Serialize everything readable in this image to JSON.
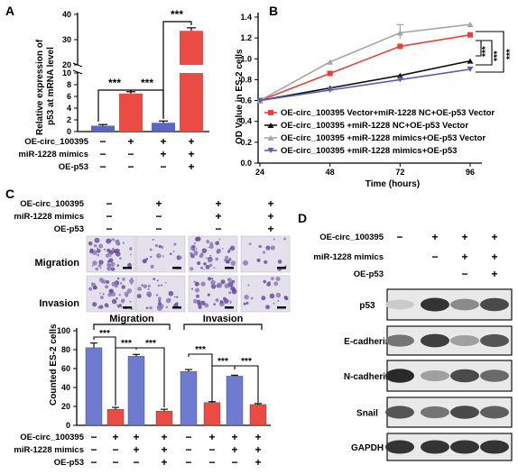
{
  "panels": {
    "a": "A",
    "b": "B",
    "c": "C",
    "d": "D"
  },
  "panel_a": {
    "ylabel_line1": "Relative expression of",
    "ylabel_line2": "p53 at mRNA level",
    "yticks_upper": [
      "20",
      "30",
      "40"
    ],
    "yticks_lower": [
      "0",
      "2",
      "4",
      "6",
      "8",
      "10"
    ],
    "sig": [
      "***",
      "***",
      "***"
    ],
    "rows": [
      {
        "label": "OE-circ_100395",
        "signs": [
          "−",
          "+",
          "+",
          "+"
        ]
      },
      {
        "label": "miR-1228 mimics",
        "signs": [
          "−",
          "−",
          "+",
          "+"
        ]
      },
      {
        "label": "OE-p53",
        "signs": [
          "−",
          "−",
          "−",
          "+"
        ]
      }
    ],
    "colors": {
      "blue": "#5a66c2",
      "red": "#ea4b43"
    }
  },
  "chart_data": [
    {
      "type": "bar",
      "panel": "A",
      "title": "",
      "ylabel": "Relative expression of p53 at mRNA level",
      "axis_break": [
        10,
        20
      ],
      "ylim": [
        0,
        40
      ],
      "categories": [
        "1",
        "2",
        "3",
        "4"
      ],
      "values": [
        1.0,
        6.5,
        1.5,
        33.5
      ],
      "errors": [
        0.2,
        0.3,
        0.3,
        1.2
      ],
      "colors": [
        "#5a66c2",
        "#ea4b43",
        "#5a66c2",
        "#ea4b43"
      ]
    },
    {
      "type": "line",
      "panel": "B",
      "ylabel": "OD Value in ES-2 cells",
      "xlabel": "Time (hours)",
      "x": [
        24,
        48,
        72,
        96
      ],
      "xlim": [
        24,
        96
      ],
      "ylim": [
        0.0,
        1.4
      ],
      "yticks": [
        "0.0",
        "0.2",
        "0.4",
        "0.6",
        "0.8",
        "1.0",
        "1.2",
        "1.4"
      ],
      "xticks": [
        "24",
        "48",
        "72",
        "96"
      ],
      "sig": [
        "***",
        "***",
        "***"
      ],
      "series": [
        {
          "name": "OE-circ_100395 Vector+miR-1228 NC+OE-p53 Vector",
          "color": "#e8403a",
          "marker": "square",
          "values": [
            0.6,
            0.86,
            1.12,
            1.23
          ]
        },
        {
          "name": "OE-circ_100395 +miR-1228 NC+OE-p53 Vector",
          "color": "#111111",
          "marker": "triangle",
          "values": [
            0.6,
            0.72,
            0.84,
            0.98
          ]
        },
        {
          "name": "OE-circ_100395 +miR-1228 mimics+OE-p53 Vector",
          "color": "#a5a5a5",
          "marker": "triangle",
          "values": [
            0.6,
            0.97,
            1.25,
            1.33
          ]
        },
        {
          "name": "OE-circ_100395 +miR-1228 mimics+OE-p53",
          "color": "#5a5fb0",
          "marker": "triangle-down",
          "values": [
            0.6,
            0.7,
            0.8,
            0.9
          ]
        }
      ]
    },
    {
      "type": "bar",
      "panel": "C",
      "ylabel": "Counted ES-2 cells",
      "ylim": [
        0,
        100
      ],
      "yticks": [
        "0",
        "20",
        "40",
        "60",
        "80",
        "100"
      ],
      "group_labels": [
        "Migration",
        "Invasion"
      ],
      "groups": [
        {
          "name": "Migration",
          "values": [
            82,
            17,
            73,
            15
          ],
          "errors": [
            5,
            2,
            2,
            2
          ]
        },
        {
          "name": "Invasion",
          "values": [
            57,
            24,
            52,
            22
          ],
          "errors": [
            2,
            1,
            1,
            1
          ]
        }
      ],
      "colors": [
        "#6f7bd0",
        "#ea4b43",
        "#6f7bd0",
        "#ea4b43"
      ],
      "sig": [
        "***",
        "***",
        "***",
        "***",
        "***",
        "***"
      ]
    }
  ],
  "panel_c": {
    "rows": [
      {
        "label": "OE-circ_100395",
        "signs": [
          "−",
          "+",
          "+",
          "+"
        ]
      },
      {
        "label": "miR-1228 mimics",
        "signs": [
          "−",
          "−",
          "+",
          "+"
        ]
      },
      {
        "label": "OE-p53",
        "signs": [
          "−",
          "−",
          "−",
          "+"
        ]
      }
    ],
    "image_rows": [
      "Migration",
      "Invasion"
    ]
  },
  "panel_d": {
    "rows": [
      {
        "label": "OE-circ_100395",
        "signs": [
          "−",
          "+",
          "+",
          "+"
        ]
      },
      {
        "label": "miR-1228 mimics",
        "signs": [
          "−",
          "−",
          "+",
          "+"
        ]
      },
      {
        "label": "OE-p53",
        "signs": [
          "−",
          "−",
          "−",
          "+"
        ]
      }
    ],
    "blots": [
      {
        "label": "p53",
        "intensity": [
          0.15,
          0.85,
          0.45,
          0.75
        ]
      },
      {
        "label": "E-cadherin",
        "intensity": [
          0.55,
          0.8,
          0.35,
          0.7
        ]
      },
      {
        "label": "N-cadherin",
        "intensity": [
          0.9,
          0.35,
          0.75,
          0.6
        ]
      },
      {
        "label": "Snail",
        "intensity": [
          0.7,
          0.55,
          0.75,
          0.65
        ]
      },
      {
        "label": "GAPDH",
        "intensity": [
          0.85,
          0.85,
          0.85,
          0.85
        ]
      }
    ]
  }
}
